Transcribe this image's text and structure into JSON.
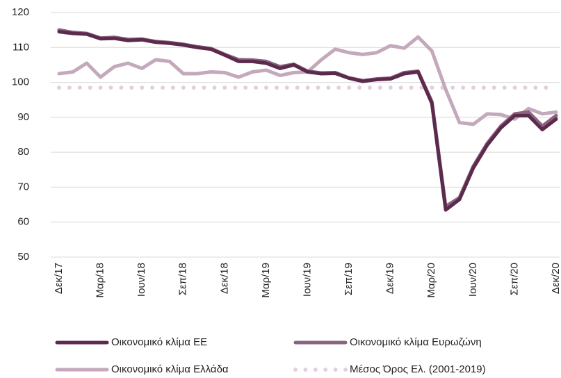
{
  "chart_data": {
    "type": "line",
    "categories": [
      "Δεκ/17",
      null,
      null,
      "Μαρ/18",
      null,
      null,
      "Ιουν/18",
      null,
      null,
      "Σεπ/18",
      null,
      null,
      "Δεκ/18",
      null,
      null,
      "Μαρ/19",
      null,
      null,
      "Ιουν/19",
      null,
      null,
      "Σεπ/19",
      null,
      null,
      "Δεκ/19",
      null,
      null,
      "Μαρ/20",
      null,
      null,
      "Ιουν/20",
      null,
      null,
      "Σεπ/20",
      null,
      null,
      "Δεκ/20"
    ],
    "series": [
      {
        "name": "Οικονομικό κλίμα ΕΕ",
        "color": "#5b2a4c",
        "style": "solid",
        "values": [
          114.5,
          114,
          113.8,
          112.5,
          112.6,
          112,
          112.2,
          111.5,
          111.2,
          110.7,
          110,
          109.5,
          107.8,
          106,
          106,
          105.5,
          104,
          105,
          103,
          102.5,
          102.6,
          101.2,
          100.3,
          100.8,
          101,
          102.5,
          103,
          94,
          63.5,
          66.5,
          75.5,
          82,
          87,
          90.5,
          90.5,
          86.5,
          89.5
        ]
      },
      {
        "name": "Οικονομικό κλίμα Ευρωζώνη",
        "color": "#8a6380",
        "style": "solid",
        "values": [
          115,
          114.3,
          114,
          112.7,
          112.9,
          112.3,
          112.4,
          111.7,
          111.4,
          110.9,
          110.2,
          109.7,
          108,
          106.5,
          106.4,
          106,
          104.5,
          105.2,
          103.2,
          102.7,
          102.8,
          101.3,
          100.5,
          101,
          101.2,
          102.8,
          103.2,
          94.5,
          64.5,
          67,
          76,
          82.5,
          87.5,
          91,
          91.5,
          87.5,
          90.5
        ]
      },
      {
        "name": "Οικονομικό κλίμα Ελλάδα",
        "color": "#c4a8bc",
        "style": "solid",
        "values": [
          102.5,
          103,
          105.5,
          101.5,
          104.5,
          105.5,
          104,
          106.5,
          106,
          102.5,
          102.5,
          103,
          102.8,
          101.5,
          103,
          103.5,
          102,
          102.8,
          103,
          106.5,
          109.5,
          108.5,
          108,
          108.5,
          110.5,
          109.8,
          113,
          109,
          98,
          88.5,
          88,
          91,
          90.8,
          89.5,
          92.5,
          91,
          91.5
        ]
      },
      {
        "name": "Μέσος Όρος Ελ. (2001-2019)",
        "color": "#e3d0df",
        "style": "dotted",
        "values": [
          98.5,
          98.5,
          98.5,
          98.5,
          98.5,
          98.5,
          98.5,
          98.5,
          98.5,
          98.5,
          98.5,
          98.5,
          98.5,
          98.5,
          98.5,
          98.5,
          98.5,
          98.5,
          98.5,
          98.5,
          98.5,
          98.5,
          98.5,
          98.5,
          98.5,
          98.5,
          98.5,
          98.5,
          98.5,
          98.5,
          98.5,
          98.5,
          98.5,
          98.5,
          98.5,
          98.5,
          98.5
        ]
      }
    ],
    "ylim": [
      50,
      120
    ],
    "yticks": [
      50,
      60,
      70,
      80,
      90,
      100,
      110,
      120
    ],
    "grid": true
  }
}
